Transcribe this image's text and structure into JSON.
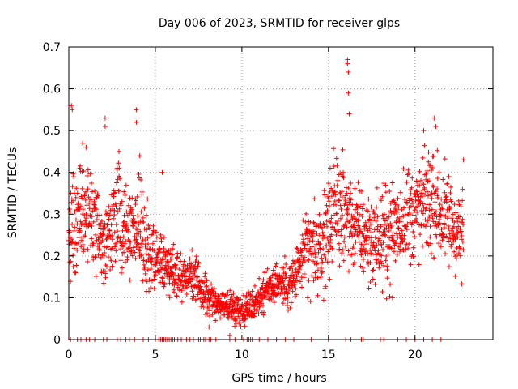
{
  "chart_data": {
    "type": "scatter",
    "title": "Day 006 of 2023, SRMTID for receiver glps",
    "xlabel": "GPS time / hours",
    "ylabel": "SRMTID / TECUs",
    "xlim": [
      0,
      24.5
    ],
    "ylim": [
      0,
      0.7
    ],
    "xticks": [
      0,
      5,
      10,
      15,
      20
    ],
    "xtick_labels": [
      "0",
      "5",
      "10",
      "15",
      "20"
    ],
    "yticks": [
      0,
      0.1,
      0.2,
      0.3,
      0.4,
      0.5,
      0.6,
      0.7
    ],
    "ytick_labels": [
      "0",
      "0.1",
      "0.2",
      "0.3",
      "0.4",
      "0.5",
      "0.6",
      "0.7"
    ],
    "grid": true,
    "marker": "+",
    "color": "#ff0000",
    "series": [
      {
        "name": "SRMTID",
        "profile": {
          "hours": [
            0,
            0.5,
            1,
            1.5,
            2,
            2.5,
            3,
            3.5,
            4,
            4.5,
            5,
            5.5,
            6,
            6.5,
            7,
            7.5,
            8,
            8.5,
            9,
            9.5,
            10,
            10.5,
            11,
            11.5,
            12,
            12.5,
            13,
            13.5,
            14,
            14.5,
            15,
            15.5,
            16,
            16.5,
            17,
            17.5,
            18,
            18.5,
            19,
            19.5,
            20,
            20.5,
            21,
            21.5,
            22,
            22.5,
            22.8
          ],
          "typical": [
            0.25,
            0.3,
            0.3,
            0.27,
            0.22,
            0.28,
            0.3,
            0.26,
            0.28,
            0.22,
            0.2,
            0.18,
            0.17,
            0.15,
            0.16,
            0.13,
            0.1,
            0.09,
            0.08,
            0.08,
            0.07,
            0.08,
            0.1,
            0.12,
            0.14,
            0.13,
            0.14,
            0.2,
            0.22,
            0.2,
            0.28,
            0.32,
            0.3,
            0.27,
            0.25,
            0.24,
            0.24,
            0.25,
            0.28,
            0.3,
            0.3,
            0.32,
            0.34,
            0.3,
            0.28,
            0.26,
            0.25
          ],
          "spread": [
            0.08,
            0.1,
            0.1,
            0.08,
            0.08,
            0.1,
            0.1,
            0.08,
            0.1,
            0.08,
            0.07,
            0.06,
            0.06,
            0.05,
            0.05,
            0.04,
            0.04,
            0.03,
            0.03,
            0.03,
            0.03,
            0.03,
            0.04,
            0.04,
            0.04,
            0.05,
            0.05,
            0.07,
            0.09,
            0.09,
            0.1,
            0.1,
            0.1,
            0.09,
            0.09,
            0.09,
            0.09,
            0.1,
            0.1,
            0.1,
            0.1,
            0.1,
            0.11,
            0.1,
            0.1,
            0.09,
            0.09
          ]
        },
        "outliers": [
          [
            0.15,
            0.56
          ],
          [
            0.2,
            0.55
          ],
          [
            0.8,
            0.47
          ],
          [
            1.0,
            0.46
          ],
          [
            2.1,
            0.53
          ],
          [
            2.1,
            0.51
          ],
          [
            2.9,
            0.45
          ],
          [
            3.9,
            0.55
          ],
          [
            3.9,
            0.52
          ],
          [
            4.1,
            0.44
          ],
          [
            5.4,
            0.4
          ],
          [
            16.1,
            0.67
          ],
          [
            16.1,
            0.66
          ],
          [
            16.15,
            0.64
          ],
          [
            16.15,
            0.59
          ],
          [
            16.2,
            0.54
          ],
          [
            20.5,
            0.5
          ],
          [
            21.1,
            0.53
          ],
          [
            21.2,
            0.51
          ],
          [
            22.8,
            0.43
          ],
          [
            15.1,
            0.41
          ],
          [
            9.3,
            0.01
          ],
          [
            8.1,
            0.03
          ],
          [
            18.7,
            0.1
          ],
          [
            13.8,
            0.1
          ]
        ],
        "zero_hours": [
          0.1,
          0.3,
          0.5,
          0.7,
          1.0,
          1.2,
          1.5,
          2.0,
          2.2,
          2.8,
          3.0,
          3.3,
          3.5,
          3.8,
          4.3,
          4.6,
          5.0,
          5.2,
          5.3,
          5.4,
          5.5,
          5.6,
          5.7,
          5.8,
          5.9,
          6.0,
          6.1,
          6.2,
          6.3,
          6.5,
          6.8,
          7.0,
          7.2,
          7.5,
          7.6,
          7.8,
          7.9,
          8.1,
          8.2,
          8.5,
          9.3,
          9.6,
          10.1,
          10.3,
          10.4,
          10.5,
          10.6,
          11.0,
          11.5,
          12.0,
          12.5,
          13.0,
          14.0,
          15.0,
          16.0,
          16.3,
          16.9,
          17.0,
          18.0,
          18.2,
          19.0,
          19.5,
          20.0,
          20.5,
          21.0,
          21.5
        ]
      }
    ]
  }
}
